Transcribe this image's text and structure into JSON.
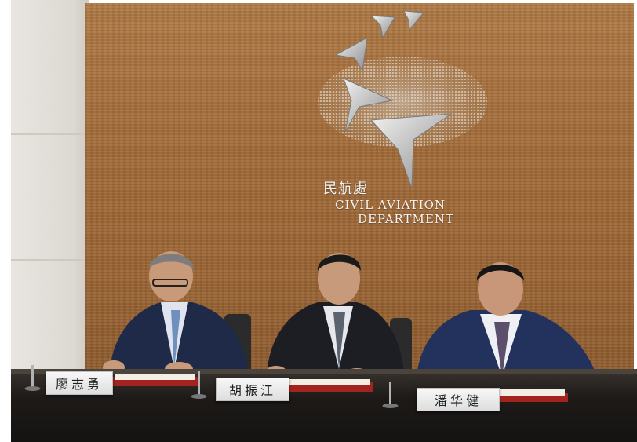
{
  "logo": {
    "name_zh": "民航處",
    "name_en_line1": "CIVIL AVIATION",
    "name_en_line2": "DEPARTMENT"
  },
  "name_plates": [
    {
      "name": "廖志勇"
    },
    {
      "name": "胡振江"
    },
    {
      "name": "潘华健"
    }
  ],
  "colors": {
    "wood_wall": "#a26b38",
    "table": "#1d1a18",
    "suit_navy": "#1f2c4d"
  }
}
